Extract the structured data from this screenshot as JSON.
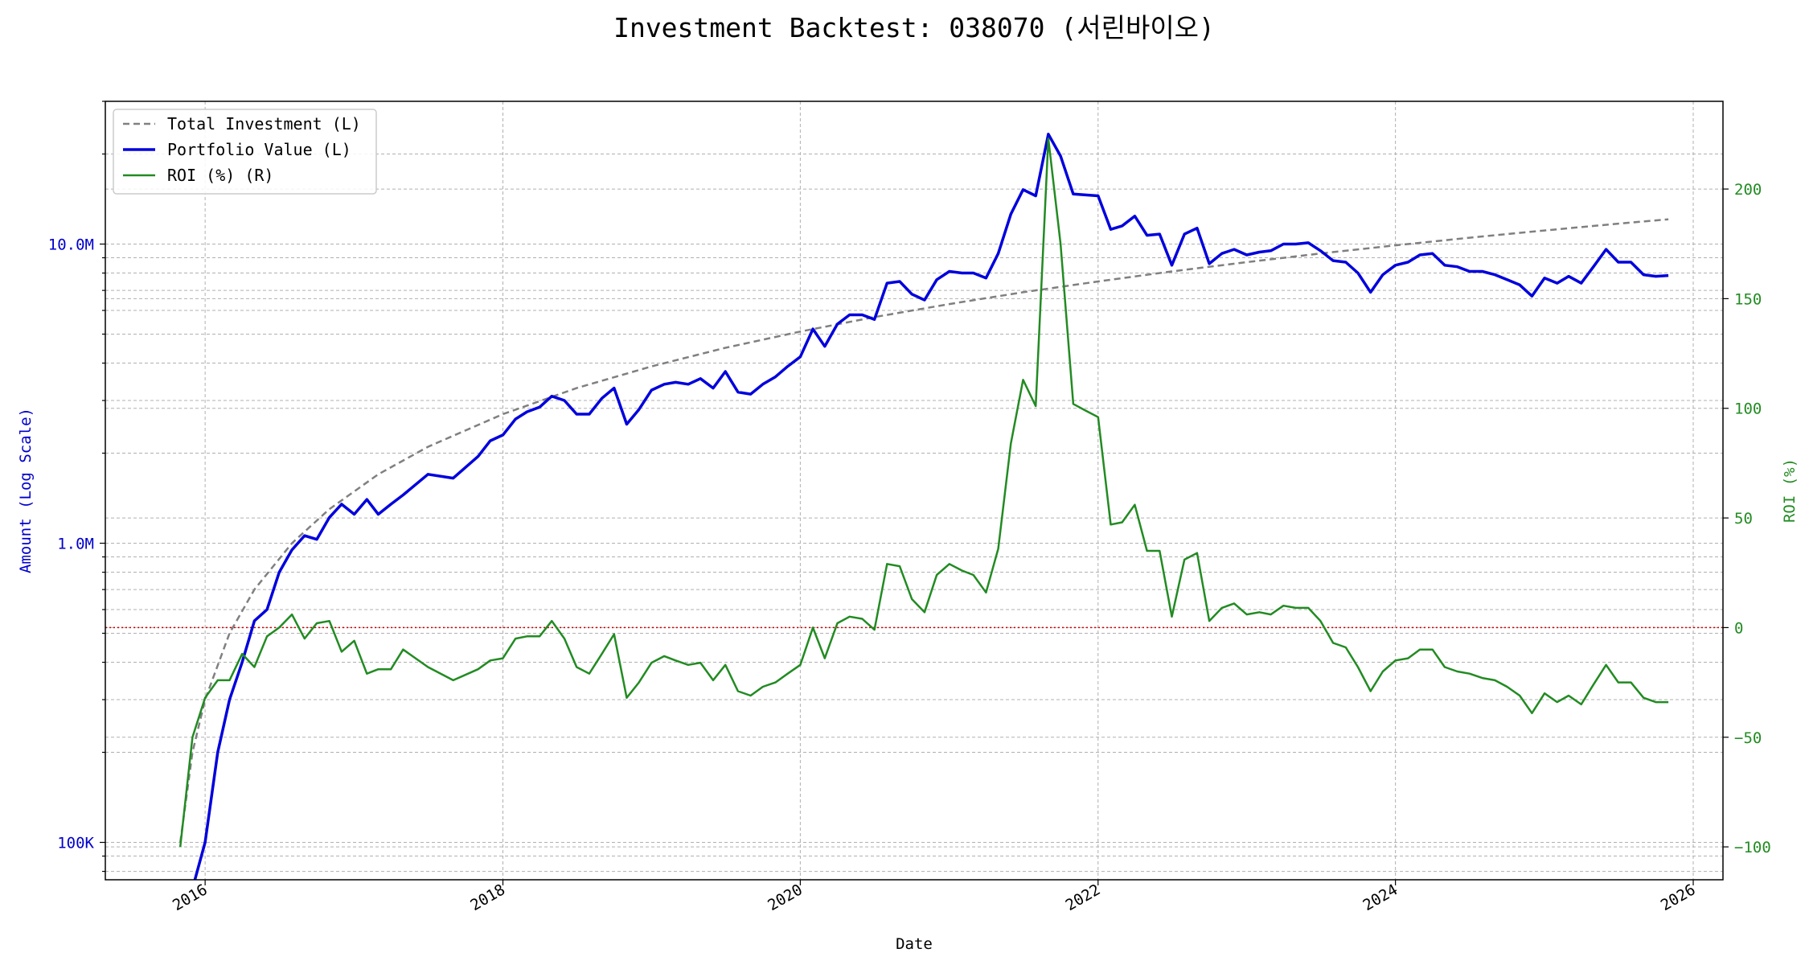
{
  "chart_data": {
    "type": "line",
    "title": "Investment Backtest: 038070 (서린바이오)",
    "xlabel": "Date",
    "ylabel_left": "Amount (Log Scale)",
    "ylabel_right": "ROI (%)",
    "left_axis": {
      "scale": "log",
      "range": [
        75000,
        30000000
      ],
      "tick_values": [
        100000,
        1000000,
        10000000
      ],
      "tick_labels": [
        "100K",
        "1.0M",
        "10.0M"
      ]
    },
    "right_axis": {
      "scale": "linear",
      "range": [
        -115,
        240
      ],
      "tick_values": [
        -100,
        -50,
        0,
        50,
        100,
        150,
        200
      ],
      "tick_labels": [
        "−100",
        "−50",
        "0",
        "50",
        "100",
        "150",
        "200"
      ]
    },
    "x_axis": {
      "range": [
        "2015-05-01",
        "2026-03-15"
      ],
      "tick_values": [
        "2016-01-01",
        "2018-01-01",
        "2020-01-01",
        "2022-01-01",
        "2024-01-01",
        "2026-01-01"
      ],
      "tick_labels": [
        "2016",
        "2018",
        "2020",
        "2022",
        "2024",
        "2026"
      ]
    },
    "grid": true,
    "legend_position": "top-left",
    "legend": [
      "Total Investment (L)",
      "Portfolio Value (L)",
      "ROI (%) (R)"
    ],
    "zero_line": {
      "axis": "right",
      "value": 0,
      "color": "#cc0000",
      "style": "dotted"
    },
    "series": [
      {
        "name": "Total Investment (L)",
        "axis": "left",
        "color": "#808080",
        "style": "dashed",
        "dates": [
          "2015-11-01",
          "2015-12-01",
          "2016-01-01",
          "2016-03-01",
          "2016-05-01",
          "2016-08-01",
          "2016-11-01",
          "2017-03-01",
          "2017-07-01",
          "2018-01-01",
          "2018-07-01",
          "2019-01-01",
          "2019-07-01",
          "2020-01-01",
          "2020-07-01",
          "2021-01-01",
          "2021-07-01",
          "2022-01-01",
          "2022-07-01",
          "2023-01-01",
          "2023-07-01",
          "2024-01-01",
          "2024-07-01",
          "2025-01-01",
          "2025-07-01",
          "2025-11-01"
        ],
        "values": [
          100000,
          200000,
          300000,
          500000,
          700000,
          1000000,
          1300000,
          1700000,
          2100000,
          2700000,
          3300000,
          3900000,
          4500000,
          5100000,
          5700000,
          6300000,
          6900000,
          7500000,
          8100000,
          8700000,
          9300000,
          9900000,
          10500000,
          11100000,
          11700000,
          12100000
        ]
      },
      {
        "name": "Portfolio Value (L)",
        "axis": "left",
        "color": "#0000dd",
        "style": "solid",
        "dates": [
          "2015-12-01",
          "2016-01-01",
          "2016-02-01",
          "2016-03-01",
          "2016-04-01",
          "2016-05-01",
          "2016-06-01",
          "2016-07-01",
          "2016-08-01",
          "2016-09-01",
          "2016-10-01",
          "2016-11-01",
          "2016-12-01",
          "2017-01-01",
          "2017-02-01",
          "2017-03-01",
          "2017-04-01",
          "2017-05-01",
          "2017-07-01",
          "2017-09-01",
          "2017-11-01",
          "2017-12-01",
          "2018-01-01",
          "2018-02-01",
          "2018-03-01",
          "2018-04-01",
          "2018-05-01",
          "2018-06-01",
          "2018-07-01",
          "2018-08-01",
          "2018-09-01",
          "2018-10-01",
          "2018-11-01",
          "2018-12-01",
          "2019-01-01",
          "2019-02-01",
          "2019-03-01",
          "2019-04-01",
          "2019-05-01",
          "2019-06-01",
          "2019-07-01",
          "2019-08-01",
          "2019-09-01",
          "2019-10-01",
          "2019-11-01",
          "2019-12-01",
          "2020-01-01",
          "2020-02-01",
          "2020-03-01",
          "2020-04-01",
          "2020-05-01",
          "2020-06-01",
          "2020-07-01",
          "2020-08-01",
          "2020-09-01",
          "2020-10-01",
          "2020-11-01",
          "2020-12-01",
          "2021-01-01",
          "2021-02-01",
          "2021-03-01",
          "2021-04-01",
          "2021-05-01",
          "2021-06-01",
          "2021-07-01",
          "2021-08-01",
          "2021-09-01",
          "2021-10-01",
          "2021-11-01",
          "2021-12-01",
          "2022-01-01",
          "2022-02-01",
          "2022-03-01",
          "2022-04-01",
          "2022-05-01",
          "2022-06-01",
          "2022-07-01",
          "2022-08-01",
          "2022-09-01",
          "2022-10-01",
          "2022-11-01",
          "2022-12-01",
          "2023-01-01",
          "2023-02-01",
          "2023-03-01",
          "2023-04-01",
          "2023-05-01",
          "2023-06-01",
          "2023-07-01",
          "2023-08-01",
          "2023-09-01",
          "2023-10-01",
          "2023-11-01",
          "2023-12-01",
          "2024-01-01",
          "2024-02-01",
          "2024-03-01",
          "2024-04-01",
          "2024-05-01",
          "2024-06-01",
          "2024-07-01",
          "2024-08-01",
          "2024-09-01",
          "2024-10-01",
          "2024-11-01",
          "2024-12-01",
          "2025-01-01",
          "2025-02-01",
          "2025-03-01",
          "2025-04-01",
          "2025-05-01",
          "2025-06-01",
          "2025-07-01",
          "2025-08-01",
          "2025-09-01",
          "2025-10-01",
          "2025-11-01"
        ],
        "values": [
          70000,
          100000,
          200000,
          300000,
          400000,
          550000,
          600000,
          800000,
          950000,
          1060000,
          1030000,
          1220000,
          1350000,
          1250000,
          1400000,
          1250000,
          1350000,
          1450000,
          1700000,
          1650000,
          1950000,
          2200000,
          2300000,
          2600000,
          2750000,
          2850000,
          3100000,
          3000000,
          2700000,
          2700000,
          3050000,
          3300000,
          2500000,
          2800000,
          3250000,
          3400000,
          3450000,
          3400000,
          3550000,
          3300000,
          3750000,
          3200000,
          3150000,
          3400000,
          3600000,
          3900000,
          4200000,
          5200000,
          4550000,
          5400000,
          5800000,
          5800000,
          5600000,
          7400000,
          7500000,
          6800000,
          6500000,
          7600000,
          8100000,
          8000000,
          8000000,
          7700000,
          9300000,
          12600000,
          15200000,
          14500000,
          23300000,
          19700000,
          14700000,
          14600000,
          14500000,
          11200000,
          11500000,
          12400000,
          10700000,
          10800000,
          8500000,
          10800000,
          11300000,
          8600000,
          9300000,
          9600000,
          9200000,
          9400000,
          9500000,
          10000000,
          10000000,
          10100000,
          9500000,
          8800000,
          8700000,
          8000000,
          6900000,
          7900000,
          8500000,
          8700000,
          9200000,
          9300000,
          8500000,
          8400000,
          8100000,
          8100000,
          7900000,
          7600000,
          7300000,
          6700000,
          7700000,
          7400000,
          7800000,
          7400000,
          8400000,
          9600000,
          8700000,
          8700000,
          7900000,
          7800000,
          7850000
        ]
      },
      {
        "name": "ROI (%) (R)",
        "axis": "right",
        "color": "#228b22",
        "style": "solid",
        "dates": [
          "2015-11-01",
          "2015-12-01",
          "2016-01-01",
          "2016-02-01",
          "2016-03-01",
          "2016-04-01",
          "2016-05-01",
          "2016-06-01",
          "2016-07-01",
          "2016-08-01",
          "2016-09-01",
          "2016-10-01",
          "2016-11-01",
          "2016-12-01",
          "2017-01-01",
          "2017-02-01",
          "2017-03-01",
          "2017-04-01",
          "2017-05-01",
          "2017-07-01",
          "2017-09-01",
          "2017-11-01",
          "2017-12-01",
          "2018-01-01",
          "2018-02-01",
          "2018-03-01",
          "2018-04-01",
          "2018-05-01",
          "2018-06-01",
          "2018-07-01",
          "2018-08-01",
          "2018-09-01",
          "2018-10-01",
          "2018-11-01",
          "2018-12-01",
          "2019-01-01",
          "2019-02-01",
          "2019-03-01",
          "2019-04-01",
          "2019-05-01",
          "2019-06-01",
          "2019-07-01",
          "2019-08-01",
          "2019-09-01",
          "2019-10-01",
          "2019-11-01",
          "2019-12-01",
          "2020-01-01",
          "2020-02-01",
          "2020-03-01",
          "2020-04-01",
          "2020-05-01",
          "2020-06-01",
          "2020-07-01",
          "2020-08-01",
          "2020-09-01",
          "2020-10-01",
          "2020-11-01",
          "2020-12-01",
          "2021-01-01",
          "2021-02-01",
          "2021-03-01",
          "2021-04-01",
          "2021-05-01",
          "2021-06-01",
          "2021-07-01",
          "2021-08-01",
          "2021-09-01",
          "2021-10-01",
          "2021-11-01",
          "2021-12-01",
          "2022-01-01",
          "2022-02-01",
          "2022-03-01",
          "2022-04-01",
          "2022-05-01",
          "2022-06-01",
          "2022-07-01",
          "2022-08-01",
          "2022-09-01",
          "2022-10-01",
          "2022-11-01",
          "2022-12-01",
          "2023-01-01",
          "2023-02-01",
          "2023-03-01",
          "2023-04-01",
          "2023-05-01",
          "2023-06-01",
          "2023-07-01",
          "2023-08-01",
          "2023-09-01",
          "2023-10-01",
          "2023-11-01",
          "2023-12-01",
          "2024-01-01",
          "2024-02-01",
          "2024-03-01",
          "2024-04-01",
          "2024-05-01",
          "2024-06-01",
          "2024-07-01",
          "2024-08-01",
          "2024-09-01",
          "2024-10-01",
          "2024-11-01",
          "2024-12-01",
          "2025-01-01",
          "2025-02-01",
          "2025-03-01",
          "2025-04-01",
          "2025-05-01",
          "2025-06-01",
          "2025-07-01",
          "2025-08-01",
          "2025-09-01",
          "2025-10-01",
          "2025-11-01"
        ],
        "values": [
          -100,
          -50,
          -32,
          -24,
          -24,
          -12,
          -18,
          -4,
          0,
          6,
          -5,
          2,
          3,
          -11,
          -6,
          -21,
          -19,
          -19,
          -10,
          -18,
          -24,
          -19,
          -15,
          -14,
          -5,
          -4,
          -4,
          3,
          -5,
          -18,
          -21,
          -12,
          -3,
          -32,
          -25,
          -16,
          -13,
          -15,
          -17,
          -16,
          -24,
          -17,
          -29,
          -31,
          -27,
          -25,
          -21,
          -17,
          0,
          -14,
          2,
          5,
          4,
          -1,
          29,
          28,
          13,
          7,
          24,
          29,
          26,
          24,
          16,
          36,
          84,
          113,
          101,
          223,
          175,
          102,
          99,
          96,
          47,
          48,
          56,
          35,
          35,
          5,
          31,
          34,
          3,
          9,
          11,
          6,
          7,
          6,
          10,
          9,
          9,
          3,
          -7,
          -9,
          -18,
          -29,
          -20,
          -15,
          -14,
          -10,
          -10,
          -18,
          -20,
          -21,
          -23,
          -24,
          -27,
          -31,
          -39,
          -30,
          -34,
          -31,
          -35,
          -26,
          -17,
          -25,
          -25,
          -32,
          -34,
          -34
        ]
      }
    ]
  }
}
